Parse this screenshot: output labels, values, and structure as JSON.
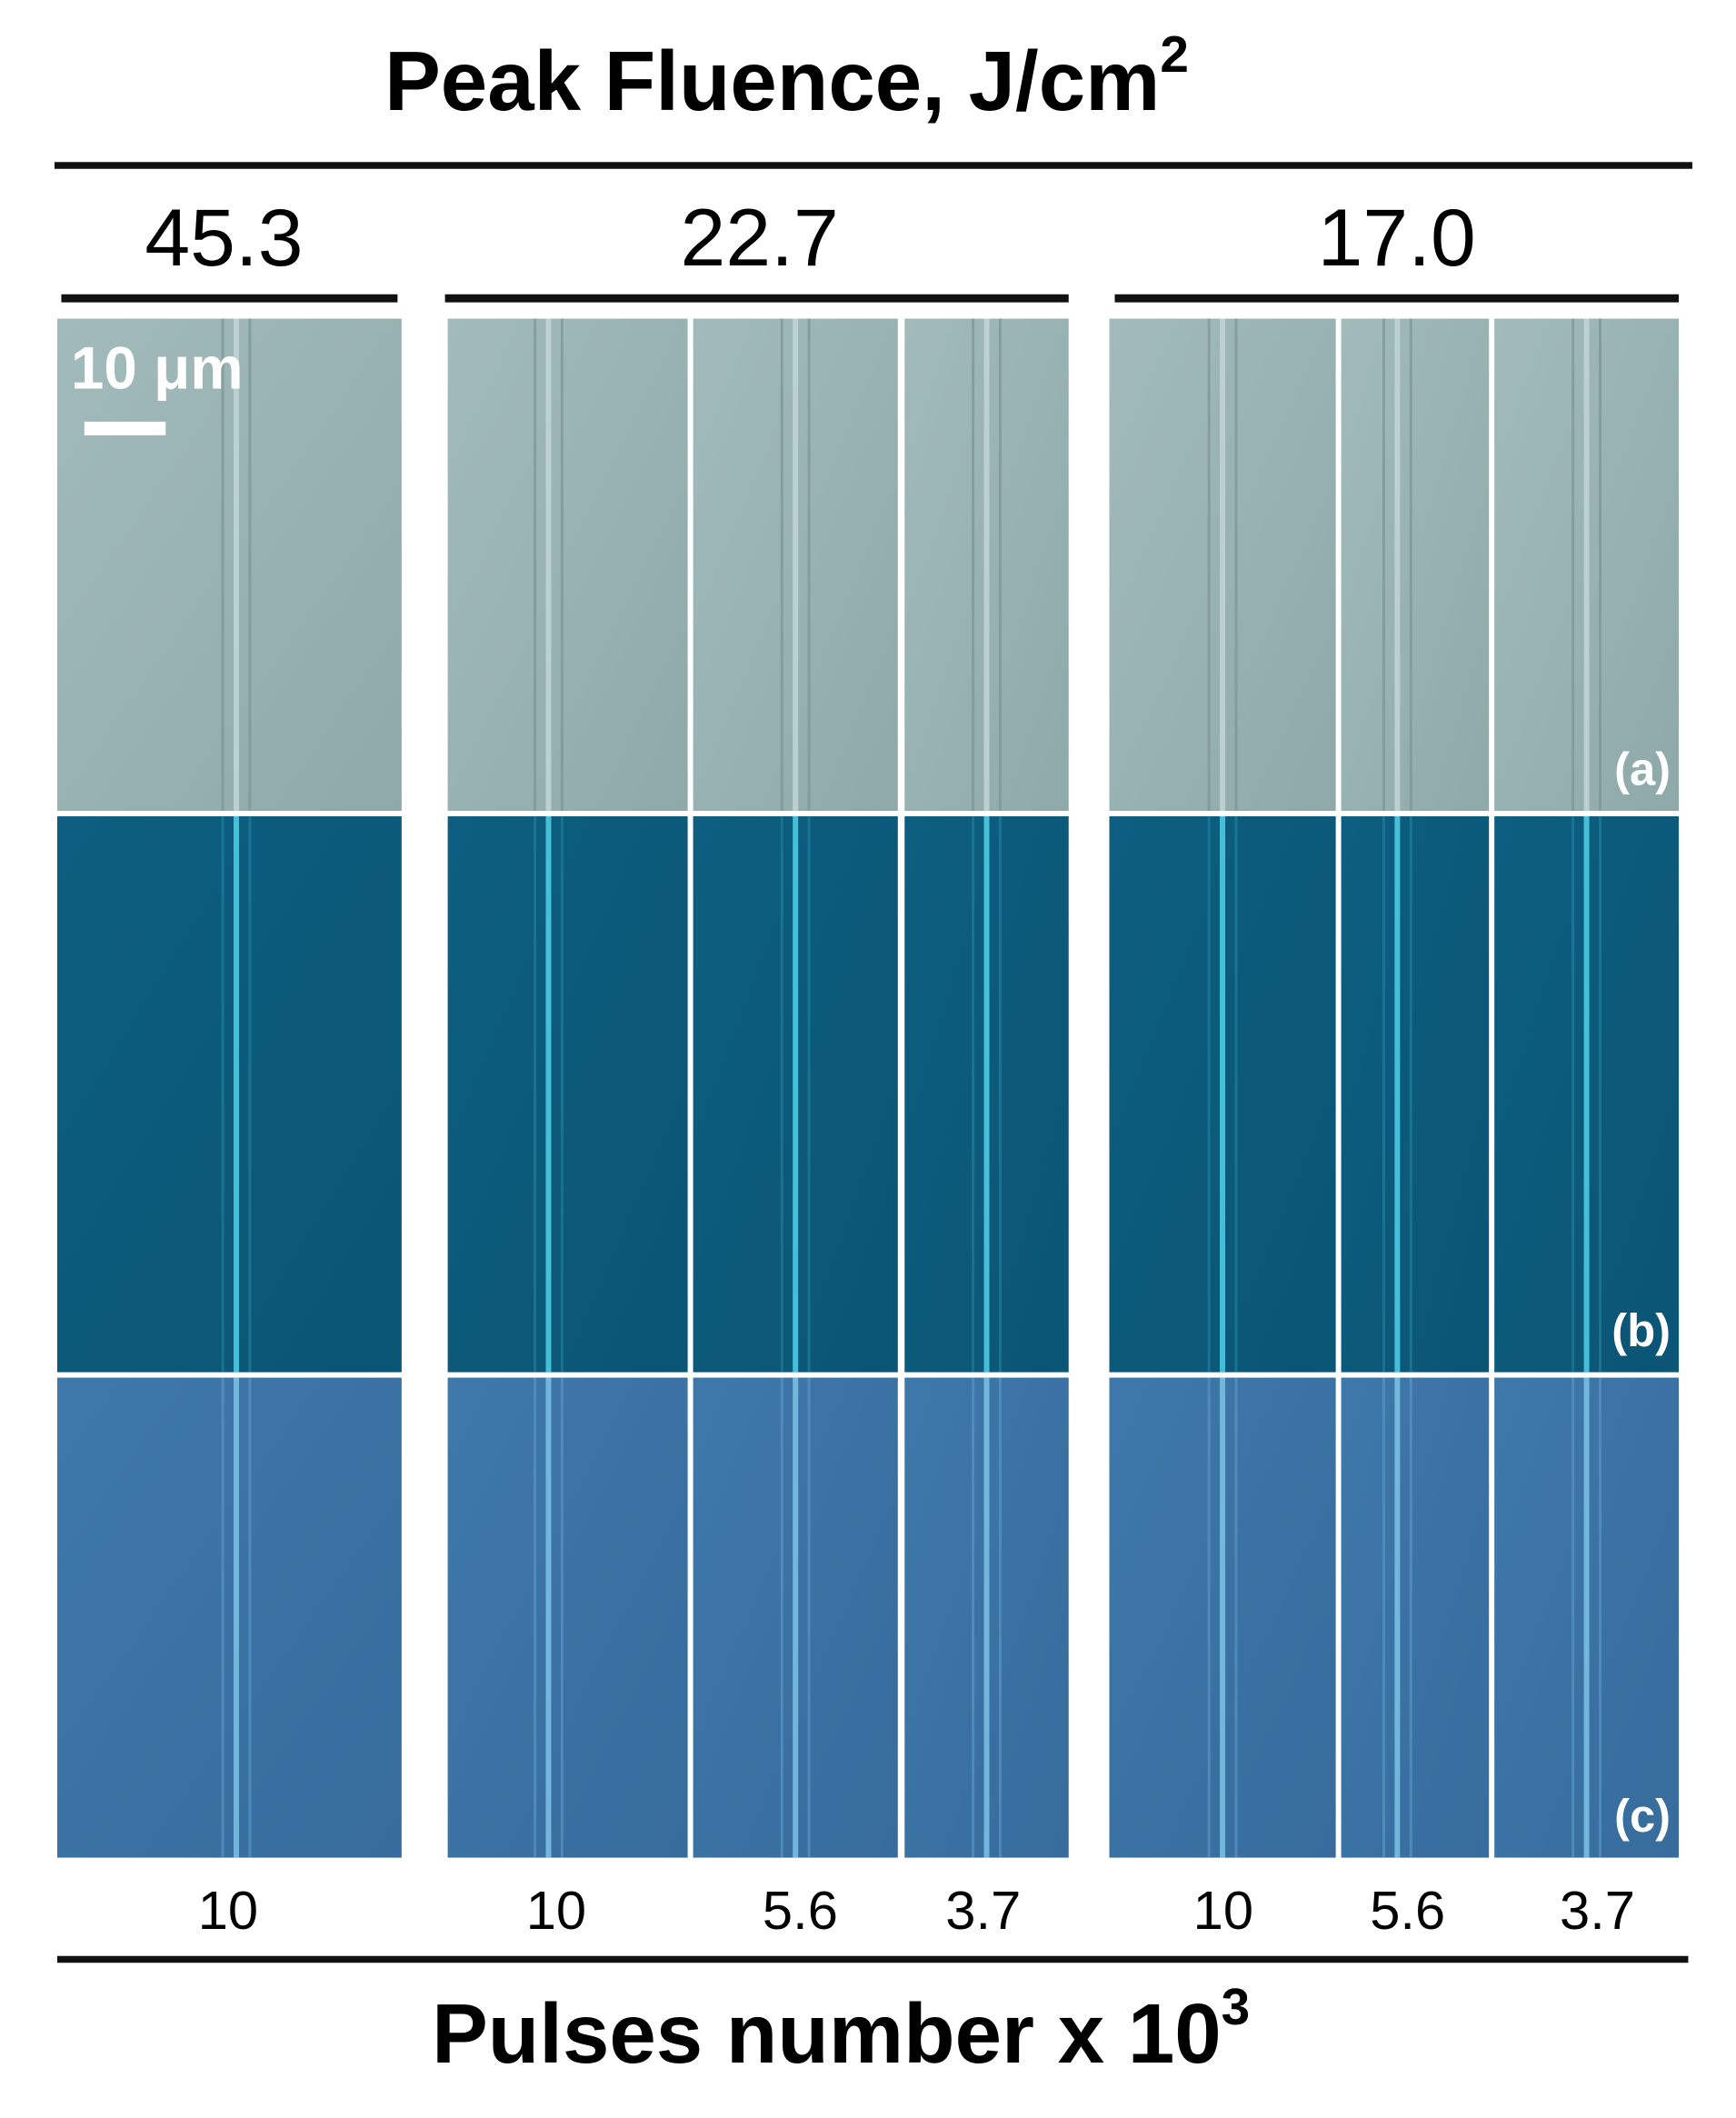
{
  "header": {
    "title": "Peak Fluence, J/cm",
    "title_superscript": "2"
  },
  "scale_bar": "10 μm",
  "groups": [
    {
      "fluence": "45.3",
      "columns": [
        {
          "pulses": "10"
        }
      ]
    },
    {
      "fluence": "22.7",
      "columns": [
        {
          "pulses": "10"
        },
        {
          "pulses": "5.6"
        },
        {
          "pulses": "3.7"
        }
      ]
    },
    {
      "fluence": "17.0",
      "columns": [
        {
          "pulses": "10"
        },
        {
          "pulses": "5.6"
        },
        {
          "pulses": "3.7"
        }
      ]
    }
  ],
  "rows": [
    "(a)",
    "(b)",
    "(c)"
  ],
  "footer": {
    "label": "Pulses number x 10",
    "label_superscript": "3"
  }
}
